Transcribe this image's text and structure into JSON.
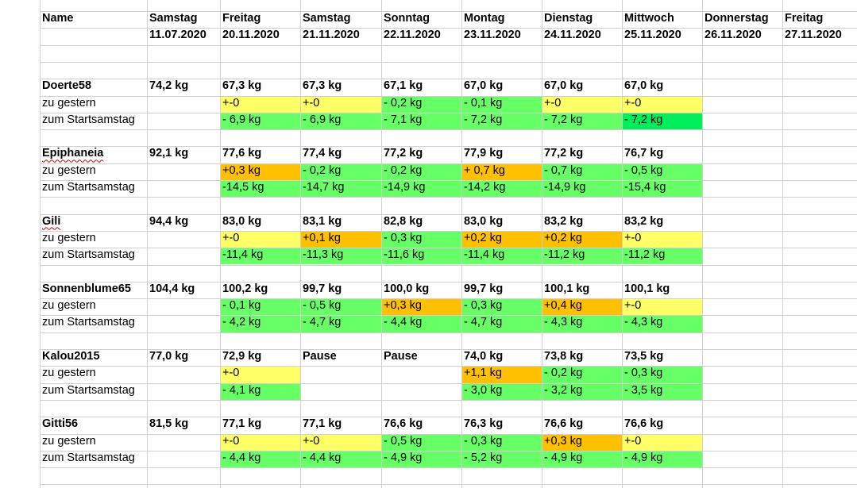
{
  "colors": {
    "yellow": "#ffff66",
    "orange": "#ffc000",
    "green": "#66ff66",
    "bright_green": "#00ee5a",
    "gridline": "#d0d0d0"
  },
  "header": {
    "name_label": "Name",
    "days": [
      {
        "day": "Samstag",
        "date": "11.07.2020"
      },
      {
        "day": "Freitag",
        "date": "20.11.2020"
      },
      {
        "day": "Samstag",
        "date": "21.11.2020"
      },
      {
        "day": "Sonntag",
        "date": "22.11.2020"
      },
      {
        "day": "Montag",
        "date": "23.11.2020"
      },
      {
        "day": "Dienstag",
        "date": "24.11.2020"
      },
      {
        "day": "Mittwoch",
        "date": "25.11.2020"
      },
      {
        "day": "Donnerstag",
        "date": "26.11.2020"
      },
      {
        "day": "Freitag",
        "date": "27.11.2020"
      }
    ]
  },
  "row_labels": {
    "vs_yesterday": "zu gestern",
    "vs_start": "zum Startsamstag"
  },
  "people": [
    {
      "name": "Doerte58",
      "start": "74,2 kg",
      "weights": [
        "67,3 kg",
        "67,3 kg",
        "67,1 kg",
        "67,0 kg",
        "67,0 kg",
        "67,0 kg"
      ],
      "yesterday": [
        {
          "v": "+-0",
          "c": "yellow"
        },
        {
          "v": "+-0",
          "c": "yellow"
        },
        {
          "v": "- 0,2 kg",
          "c": "green"
        },
        {
          "v": "- 0,1 kg",
          "c": "green"
        },
        {
          "v": "+-0",
          "c": "yellow"
        },
        {
          "v": "+-0",
          "c": "yellow"
        }
      ],
      "start_diff": [
        {
          "v": "- 6,9 kg",
          "c": "green"
        },
        {
          "v": "- 6,9 kg",
          "c": "green"
        },
        {
          "v": "- 7,1 kg",
          "c": "green"
        },
        {
          "v": "- 7,2 kg",
          "c": "green"
        },
        {
          "v": "- 7,2 kg",
          "c": "green"
        },
        {
          "v": "- 7,2 kg",
          "c": "bright_green"
        }
      ]
    },
    {
      "name": "Epiphaneia",
      "start": "92,1 kg",
      "weights": [
        "77,6 kg",
        "77,4 kg",
        "77,2 kg",
        "77,9 kg",
        "77,2 kg",
        "76,7 kg"
      ],
      "yesterday": [
        {
          "v": "+0,3 kg",
          "c": "orange"
        },
        {
          "v": "- 0,2 kg",
          "c": "green"
        },
        {
          "v": "- 0,2 kg",
          "c": "green"
        },
        {
          "v": "+ 0,7 kg",
          "c": "orange"
        },
        {
          "v": "- 0,7 kg",
          "c": "green"
        },
        {
          "v": "- 0,5 kg",
          "c": "green"
        }
      ],
      "start_diff": [
        {
          "v": "-14,5 kg",
          "c": "green"
        },
        {
          "v": "-14,7 kg",
          "c": "green"
        },
        {
          "v": "-14,9 kg",
          "c": "green"
        },
        {
          "v": "-14,2 kg",
          "c": "green"
        },
        {
          "v": "-14,9 kg",
          "c": "green"
        },
        {
          "v": "-15,4 kg",
          "c": "green"
        }
      ]
    },
    {
      "name": "Gili",
      "start": "94,4 kg",
      "weights": [
        "83,0 kg",
        "83,1 kg",
        "82,8 kg",
        "83,0 kg",
        "83,2 kg",
        "83,2 kg"
      ],
      "yesterday": [
        {
          "v": "+-0",
          "c": "yellow"
        },
        {
          "v": "+0,1 kg",
          "c": "orange"
        },
        {
          "v": "- 0,3 kg",
          "c": "green"
        },
        {
          "v": "+0,2 kg",
          "c": "orange"
        },
        {
          "v": "+0,2 kg",
          "c": "orange"
        },
        {
          "v": "+-0",
          "c": "yellow"
        }
      ],
      "start_diff": [
        {
          "v": "-11,4 kg",
          "c": "green"
        },
        {
          "v": "-11,3 kg",
          "c": "green"
        },
        {
          "v": "-11,6 kg",
          "c": "green"
        },
        {
          "v": "-11,4 kg",
          "c": "green"
        },
        {
          "v": "-11,2 kg",
          "c": "green"
        },
        {
          "v": "-11,2 kg",
          "c": "green"
        }
      ]
    },
    {
      "name": "Sonnenblume65",
      "start": "104,4 kg",
      "weights": [
        "100,2 kg",
        "99,7 kg",
        "100,0 kg",
        "99,7 kg",
        "100,1 kg",
        "100,1 kg"
      ],
      "yesterday": [
        {
          "v": "- 0,1 kg",
          "c": "green"
        },
        {
          "v": "- 0,5 kg",
          "c": "green"
        },
        {
          "v": "+0,3 kg",
          "c": "orange"
        },
        {
          "v": "- 0,3 kg",
          "c": "green"
        },
        {
          "v": "+0,4 kg",
          "c": "orange"
        },
        {
          "v": "+-0",
          "c": "yellow"
        }
      ],
      "start_diff": [
        {
          "v": "- 4,2 kg",
          "c": "green"
        },
        {
          "v": "- 4,7 kg",
          "c": "green"
        },
        {
          "v": "- 4,4 kg",
          "c": "green"
        },
        {
          "v": "- 4,7 kg",
          "c": "green"
        },
        {
          "v": "- 4,3 kg",
          "c": "green"
        },
        {
          "v": "- 4,3 kg",
          "c": "green"
        }
      ]
    },
    {
      "name": "Kalou2015",
      "start": "77,0 kg",
      "weights": [
        "72,9 kg",
        "Pause",
        "Pause",
        "74,0 kg",
        "73,8 kg",
        "73,5 kg"
      ],
      "yesterday": [
        {
          "v": "+-0",
          "c": "yellow"
        },
        {
          "v": "",
          "c": ""
        },
        {
          "v": "",
          "c": ""
        },
        {
          "v": "+1,1 kg",
          "c": "orange"
        },
        {
          "v": "- 0,2 kg",
          "c": "green"
        },
        {
          "v": "- 0,3 kg",
          "c": "green"
        }
      ],
      "start_diff": [
        {
          "v": "- 4,1 kg",
          "c": "green"
        },
        {
          "v": "",
          "c": ""
        },
        {
          "v": "",
          "c": ""
        },
        {
          "v": "- 3,0 kg",
          "c": "green"
        },
        {
          "v": "- 3,2 kg",
          "c": "green"
        },
        {
          "v": "- 3,5 kg",
          "c": "green"
        }
      ]
    },
    {
      "name": "Gitti56",
      "start": "81,5 kg",
      "weights": [
        "77,1 kg",
        "77,1 kg",
        "76,6 kg",
        "76,3 kg",
        "76,6 kg",
        "76,6 kg"
      ],
      "yesterday": [
        {
          "v": "+-0",
          "c": "yellow"
        },
        {
          "v": "+-0",
          "c": "yellow"
        },
        {
          "v": "- 0,5 kg",
          "c": "green"
        },
        {
          "v": "- 0,3 kg",
          "c": "green"
        },
        {
          "v": "+0,3 kg",
          "c": "orange"
        },
        {
          "v": "+-0",
          "c": "yellow"
        }
      ],
      "start_diff": [
        {
          "v": "- 4,4 kg",
          "c": "green"
        },
        {
          "v": "- 4,4 kg",
          "c": "green"
        },
        {
          "v": "- 4,9 kg",
          "c": "green"
        },
        {
          "v": "- 5,2 kg",
          "c": "green"
        },
        {
          "v": "- 4,9 kg",
          "c": "green"
        },
        {
          "v": "- 4,9 kg",
          "c": "green"
        }
      ]
    }
  ]
}
